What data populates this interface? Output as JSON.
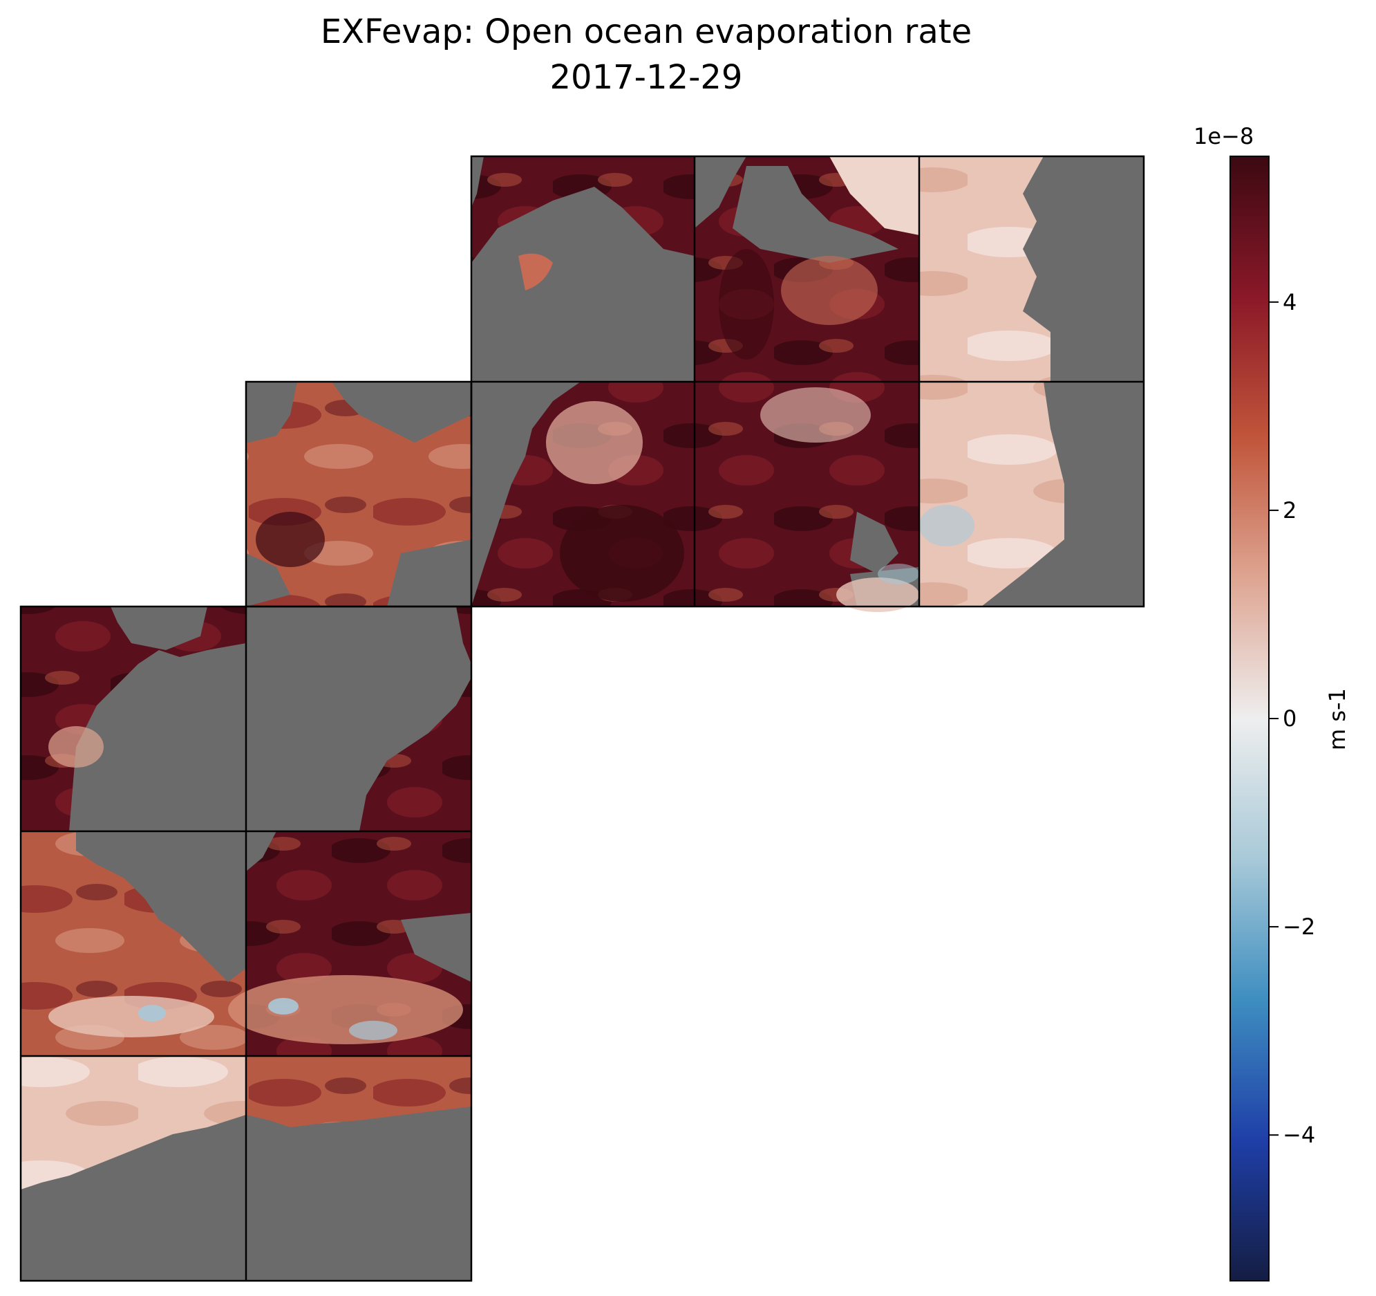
{
  "title": {
    "line1": "EXFevap: Open ocean evaporation rate",
    "line2": "2017-12-29"
  },
  "colorbar": {
    "exponent_label": "1e−8",
    "unit_label": "m s-1",
    "vmin": -5.4,
    "vmax": 5.4,
    "ticks": [
      {
        "value": 4,
        "label": "4"
      },
      {
        "value": 2,
        "label": "2"
      },
      {
        "value": 0,
        "label": "0"
      },
      {
        "value": -2,
        "label": "−2"
      },
      {
        "value": -4,
        "label": "−4"
      }
    ],
    "colormap": [
      "#141d43",
      "#1f3fa8",
      "#3e8ec0",
      "#a8c9d8",
      "#eeeeee",
      "#dea592",
      "#c0553a",
      "#8a1828",
      "#3c0912"
    ]
  },
  "map": {
    "land_color": "#6b6b6b",
    "tile_border_color": "#000000",
    "tile_count": 13
  }
}
